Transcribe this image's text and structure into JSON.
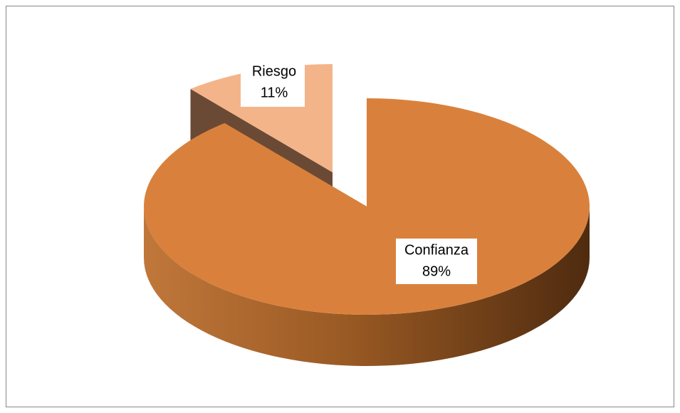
{
  "chart_data": {
    "type": "pie",
    "categories": [
      "Confianza",
      "Riesgo"
    ],
    "values": [
      89,
      11
    ],
    "value_labels": [
      "89%",
      "11%"
    ],
    "colors": [
      "#d9813c",
      "#f4b48a"
    ]
  }
}
